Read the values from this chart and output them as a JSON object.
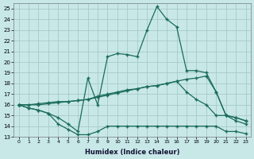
{
  "xlabel": "Humidex (Indice chaleur)",
  "bg_color": "#c8e8e8",
  "grid_color": "#a0c4c4",
  "line_color": "#1a6b5a",
  "xlim": [
    -0.5,
    23.5
  ],
  "ylim": [
    13,
    25.5
  ],
  "xticks": [
    0,
    1,
    2,
    3,
    4,
    5,
    6,
    7,
    8,
    9,
    10,
    11,
    12,
    13,
    14,
    15,
    16,
    17,
    18,
    19,
    20,
    21,
    22,
    23
  ],
  "yticks": [
    13,
    14,
    15,
    16,
    17,
    18,
    19,
    20,
    21,
    22,
    23,
    24,
    25
  ],
  "line1_x": [
    0,
    1,
    2,
    3,
    4,
    5,
    6,
    7,
    8,
    9,
    10,
    11,
    12,
    13,
    14,
    15,
    16,
    17,
    18,
    19,
    20,
    21,
    22,
    23
  ],
  "line1_y": [
    16.0,
    15.7,
    15.5,
    15.2,
    14.2,
    13.7,
    13.2,
    13.2,
    13.5,
    14.0,
    14.0,
    14.0,
    14.0,
    14.0,
    14.0,
    14.0,
    14.0,
    14.0,
    14.0,
    14.0,
    14.0,
    13.5,
    13.5,
    13.3
  ],
  "line2_x": [
    0,
    1,
    2,
    3,
    4,
    5,
    6,
    7,
    8,
    9,
    10,
    11,
    12,
    13,
    14,
    15,
    16,
    17,
    18,
    19,
    20,
    21,
    22,
    23
  ],
  "line2_y": [
    16.0,
    16.0,
    16.1,
    16.2,
    16.3,
    16.3,
    16.4,
    16.5,
    16.7,
    16.9,
    17.1,
    17.3,
    17.5,
    17.7,
    17.8,
    18.0,
    18.2,
    18.4,
    18.5,
    18.7,
    17.2,
    15.0,
    14.5,
    14.2
  ],
  "line3_x": [
    0,
    1,
    2,
    3,
    4,
    5,
    6,
    7,
    8,
    9,
    10,
    11,
    12,
    13,
    14,
    15,
    16,
    17,
    18,
    19,
    20,
    21,
    22,
    23
  ],
  "line3_y": [
    16.0,
    16.0,
    16.0,
    16.1,
    16.2,
    16.3,
    16.4,
    16.5,
    16.8,
    17.0,
    17.2,
    17.4,
    17.5,
    17.7,
    17.8,
    18.0,
    18.2,
    17.2,
    16.5,
    16.0,
    15.0,
    15.0,
    14.8,
    14.5
  ],
  "line4_x": [
    0,
    1,
    2,
    3,
    4,
    5,
    6,
    7,
    8,
    9,
    10,
    11,
    12,
    13,
    14,
    15,
    16,
    17,
    18,
    19,
    20,
    21,
    22,
    23
  ],
  "line4_y": [
    16.0,
    15.7,
    15.5,
    15.2,
    14.8,
    14.2,
    13.5,
    18.5,
    16.0,
    20.5,
    20.8,
    20.7,
    20.5,
    23.0,
    25.2,
    24.0,
    23.3,
    19.2,
    19.2,
    19.0,
    17.2,
    15.0,
    14.8,
    14.5
  ]
}
